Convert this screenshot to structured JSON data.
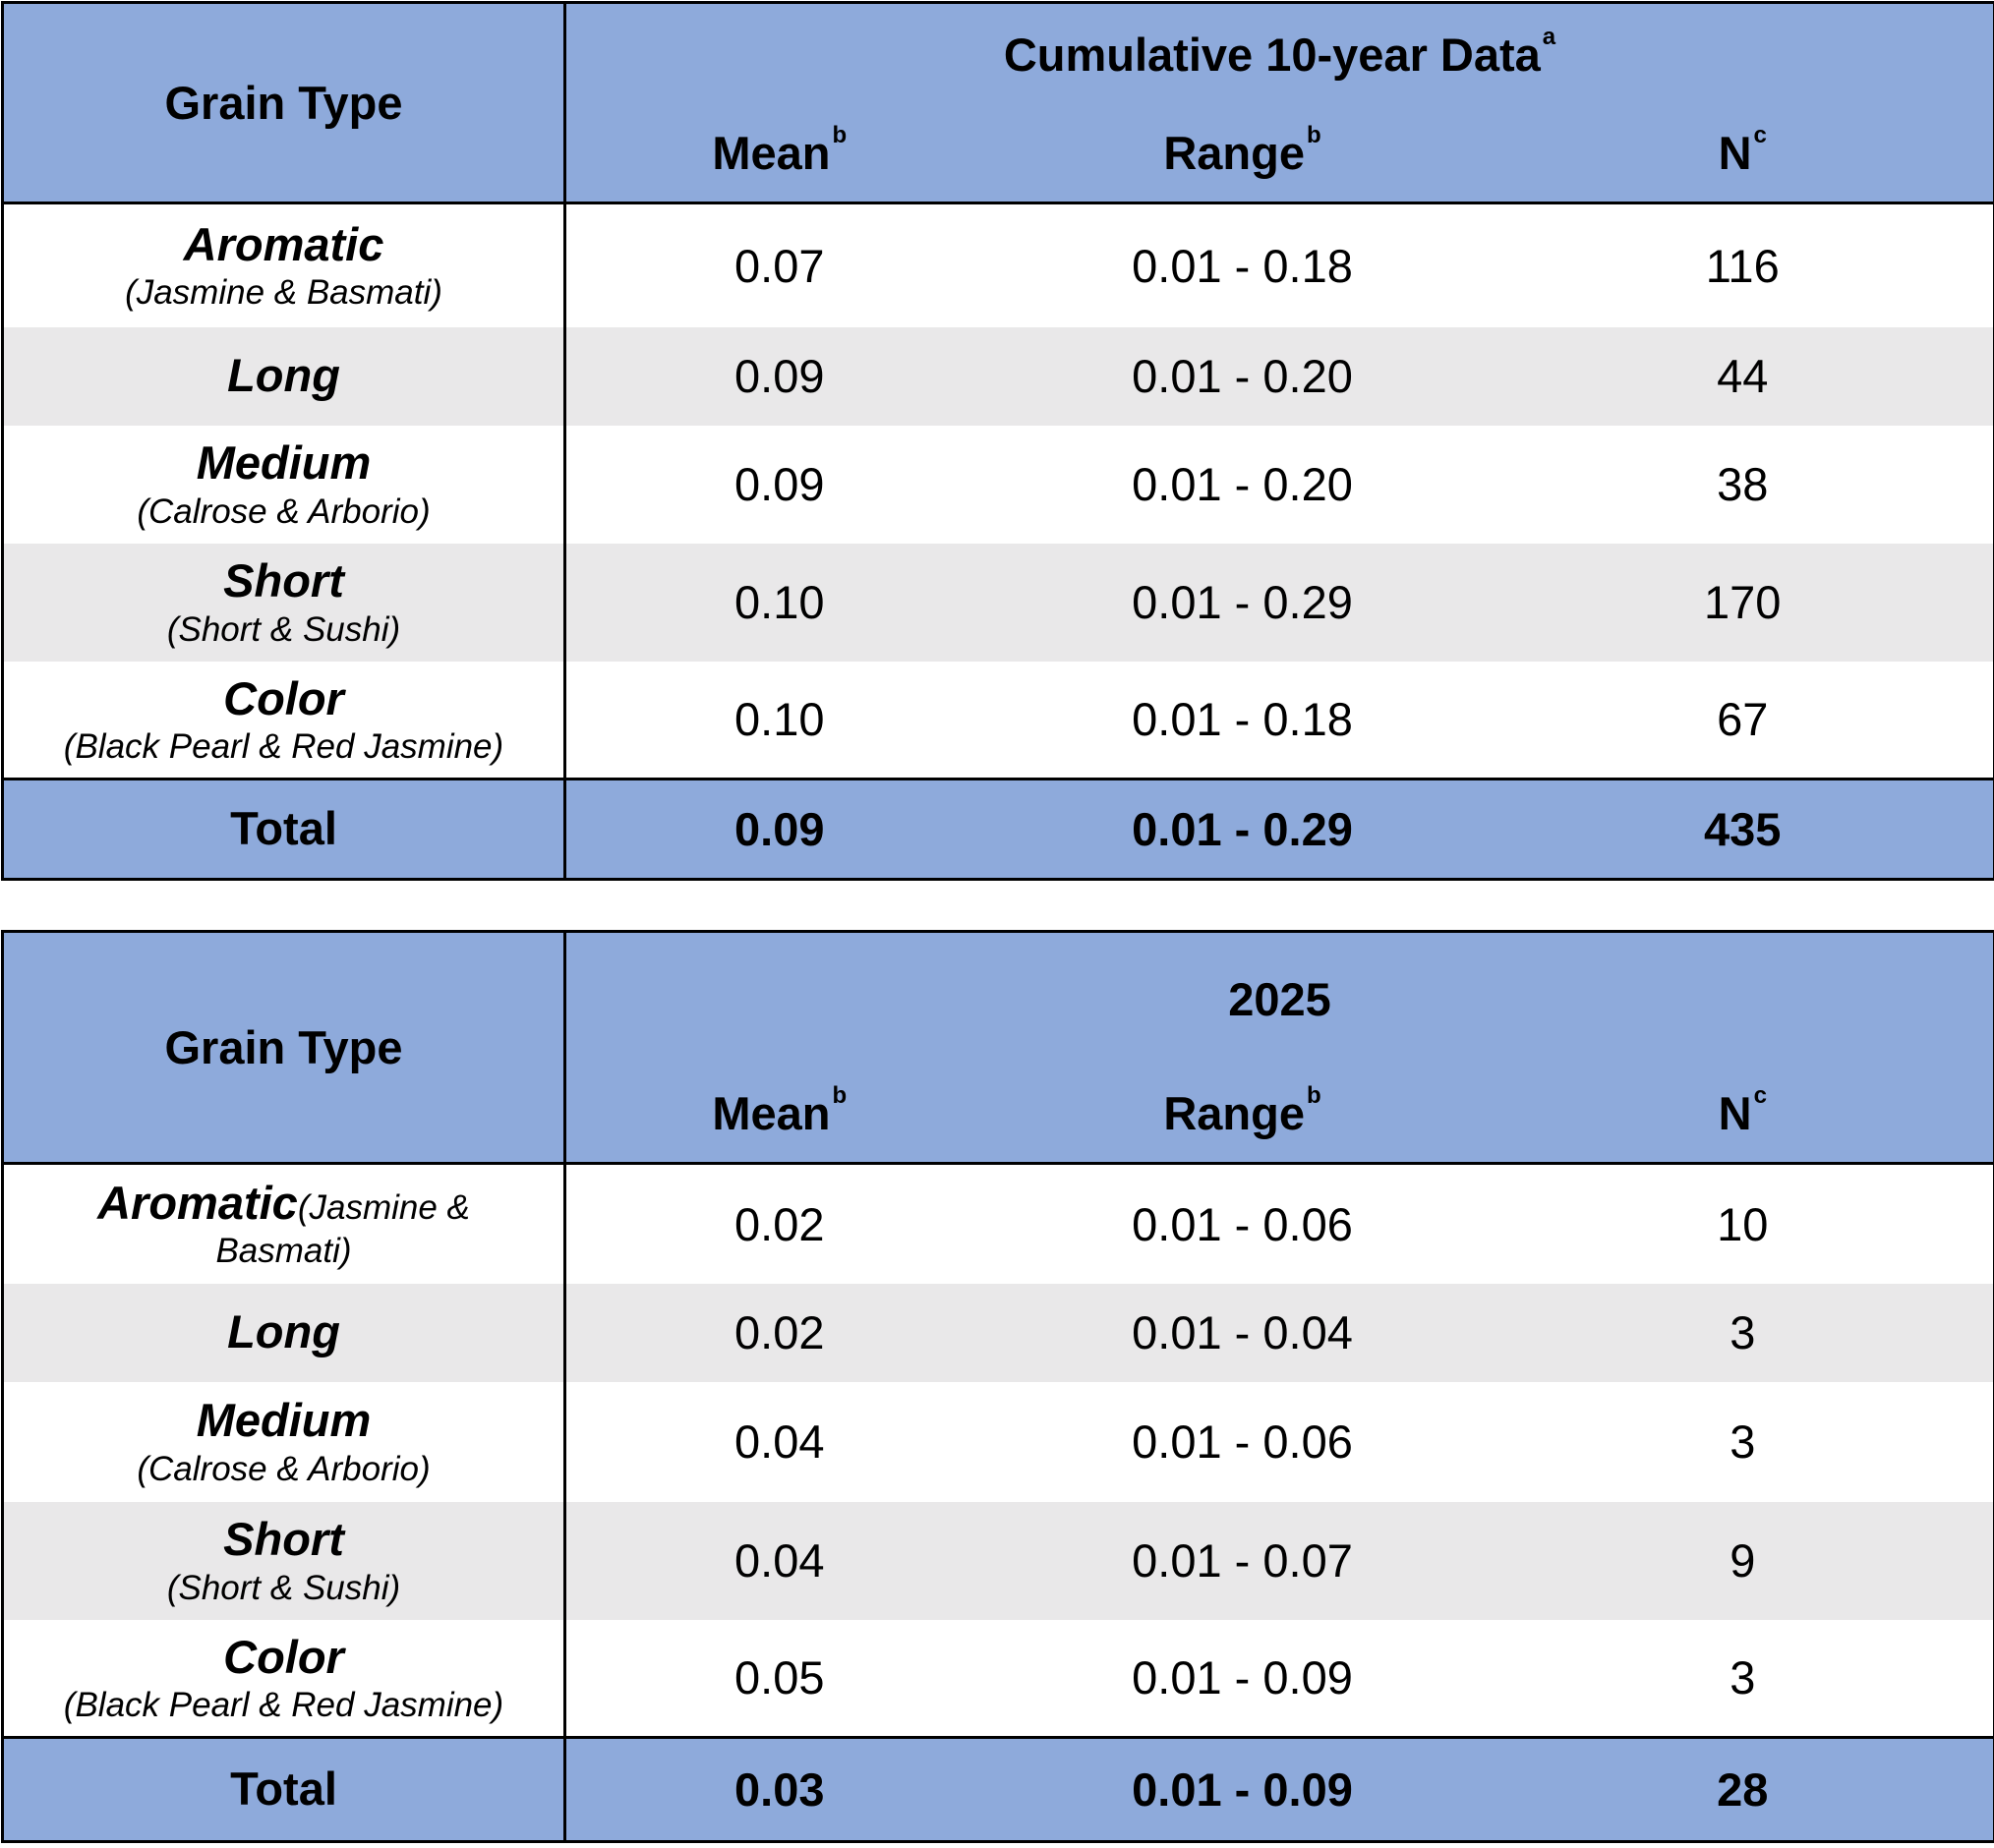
{
  "tables": [
    {
      "title": "Cumulative 10-year Data",
      "title_sup": "a",
      "grain_type_header": "Grain Type",
      "columns": [
        {
          "label": "Mean",
          "sup": "b"
        },
        {
          "label": "Range",
          "sup": "b"
        },
        {
          "label": "N",
          "sup": "c"
        }
      ],
      "rows": [
        {
          "name": "Aromatic",
          "sub": "(Jasmine & Basmati)",
          "mean": "0.07",
          "range": "0.01 - 0.18",
          "n": "116"
        },
        {
          "name": "Long",
          "sub": "",
          "mean": "0.09",
          "range": "0.01 - 0.20",
          "n": "44"
        },
        {
          "name": "Medium",
          "sub": "(Calrose & Arborio)",
          "mean": "0.09",
          "range": "0.01 - 0.20",
          "n": "38"
        },
        {
          "name": "Short",
          "sub": "(Short & Sushi)",
          "mean": "0.10",
          "range": "0.01 - 0.29",
          "n": "170"
        },
        {
          "name": "Color",
          "sub": "(Black Pearl & Red Jasmine)",
          "mean": "0.10",
          "range": "0.01 - 0.18",
          "n": "67"
        }
      ],
      "total": {
        "label": "Total",
        "mean": "0.09",
        "range": "0.01 - 0.29",
        "n": "435"
      }
    },
    {
      "title": "2025",
      "grain_type_header": "Grain Type",
      "columns": [
        {
          "label": "Mean",
          "sup": "b"
        },
        {
          "label": "Range",
          "sup": "b"
        },
        {
          "label": "N",
          "sup": "c"
        }
      ],
      "rows": [
        {
          "name": "Aromatic",
          "sub": "(Jasmine &",
          "sub2": "Basmati)",
          "mean": "0.02",
          "range": "0.01 - 0.06",
          "n": "10"
        },
        {
          "name": "Long",
          "sub": "",
          "mean": "0.02",
          "range": "0.01 - 0.04",
          "n": "3"
        },
        {
          "name": "Medium",
          "sub": "(Calrose & Arborio)",
          "mean": "0.04",
          "range": "0.01 - 0.06",
          "n": "3"
        },
        {
          "name": "Short",
          "sub": "(Short & Sushi)",
          "mean": "0.04",
          "range": "0.01 - 0.07",
          "n": "9"
        },
        {
          "name": "Color",
          "sub": "(Black Pearl & Red Jasmine)",
          "mean": "0.05",
          "range": "0.01 - 0.09",
          "n": "3"
        }
      ],
      "total": {
        "label": "Total",
        "mean": "0.03",
        "range": "0.01 - 0.09",
        "n": "28"
      }
    }
  ],
  "colors": {
    "header": "#8eaadb",
    "stripe": "#e9e8e9",
    "border": "#000000"
  }
}
